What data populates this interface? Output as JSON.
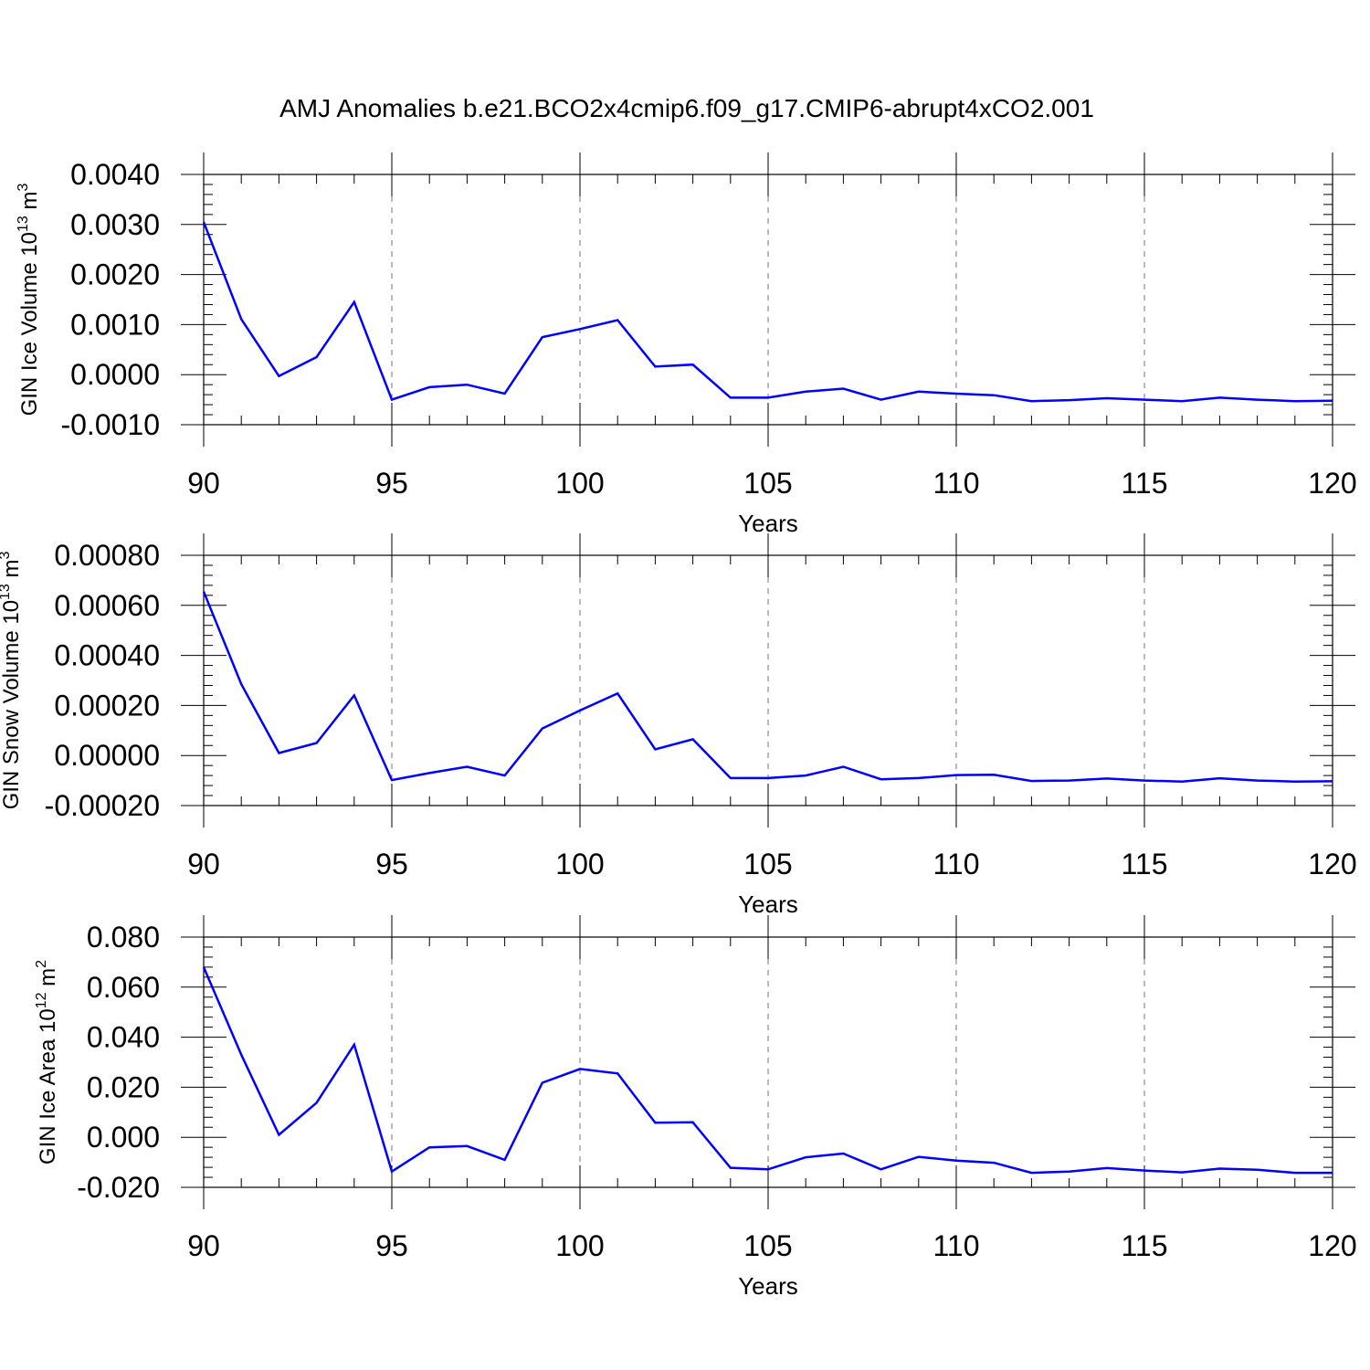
{
  "title": "AMJ Anomalies b.e21.BCO2x4cmip6.f09_g17.CMIP6-abrupt4xCO2.001",
  "line_color": "#0000ff",
  "chart_data": [
    {
      "type": "line",
      "title": "AMJ Anomalies b.e21.BCO2x4cmip6.f09_g17.CMIP6-abrupt4xCO2.001",
      "xlabel": "Years",
      "ylabel": "GIN Ice Volume 10",
      "ylabel_exp": "13",
      "ylabel_unit": " m",
      "ylabel_unit_exp": "3",
      "xlim": [
        90,
        120
      ],
      "ylim": [
        -0.001,
        0.004
      ],
      "xticks": [
        90,
        95,
        100,
        105,
        110,
        115,
        120
      ],
      "xtick_labels": [
        "90",
        "95",
        "100",
        "105",
        "110",
        "115",
        "120"
      ],
      "yticks": [
        -0.001,
        0.0,
        0.001,
        0.002,
        0.003,
        0.004
      ],
      "ytick_labels": [
        "-0.0010",
        "0.0000",
        "0.0010",
        "0.0020",
        "0.0030",
        "0.0040"
      ],
      "x": [
        90,
        91,
        92,
        93,
        94,
        95,
        96,
        97,
        98,
        99,
        100,
        101,
        102,
        103,
        104,
        105,
        106,
        107,
        108,
        109,
        110,
        111,
        112,
        113,
        114,
        115,
        116,
        117,
        118,
        119,
        120
      ],
      "values": [
        0.00305,
        0.00111,
        -3e-05,
        0.00035,
        0.00145,
        -0.0005,
        -0.00025,
        -0.0002,
        -0.00038,
        0.00075,
        0.00091,
        0.00109,
        0.00016,
        0.0002,
        -0.00046,
        -0.00046,
        -0.00034,
        -0.00028,
        -0.0005,
        -0.00034,
        -0.00038,
        -0.00041,
        -0.00053,
        -0.00051,
        -0.00047,
        -0.0005,
        -0.00053,
        -0.00046,
        -0.0005,
        -0.00053,
        -0.00052
      ]
    },
    {
      "type": "line",
      "xlabel": "Years",
      "ylabel": "GIN Snow Volume 10",
      "ylabel_exp": "13",
      "ylabel_unit": " m",
      "ylabel_unit_exp": "3",
      "xlim": [
        90,
        120
      ],
      "ylim": [
        -0.0002,
        0.0008
      ],
      "xticks": [
        90,
        95,
        100,
        105,
        110,
        115,
        120
      ],
      "xtick_labels": [
        "90",
        "95",
        "100",
        "105",
        "110",
        "115",
        "120"
      ],
      "yticks": [
        -0.0002,
        0.0,
        0.0002,
        0.0004,
        0.0006,
        0.0008
      ],
      "ytick_labels": [
        "-0.00020",
        "0.00000",
        "0.00020",
        "0.00040",
        "0.00060",
        "0.00080"
      ],
      "x": [
        90,
        91,
        92,
        93,
        94,
        95,
        96,
        97,
        98,
        99,
        100,
        101,
        102,
        103,
        104,
        105,
        106,
        107,
        108,
        109,
        110,
        111,
        112,
        113,
        114,
        115,
        116,
        117,
        118,
        119,
        120
      ],
      "values": [
        0.000655,
        0.000285,
        1e-05,
        5e-05,
        0.00024,
        -9.8e-05,
        -7e-05,
        -4.5e-05,
        -8e-05,
        0.000108,
        0.00018,
        0.000248,
        2.5e-05,
        6.5e-05,
        -9e-05,
        -9e-05,
        -8e-05,
        -4.5e-05,
        -9.5e-05,
        -9e-05,
        -7.8e-05,
        -7.7e-05,
        -0.000102,
        -0.0001,
        -9.2e-05,
        -0.0001,
        -0.000104,
        -9.1e-05,
        -0.0001,
        -0.000104,
        -0.000103
      ]
    },
    {
      "type": "line",
      "xlabel": "Years",
      "ylabel": "GIN Ice Area 10",
      "ylabel_exp": "12",
      "ylabel_unit": " m",
      "ylabel_unit_exp": "2",
      "xlim": [
        90,
        120
      ],
      "ylim": [
        -0.02,
        0.08
      ],
      "xticks": [
        90,
        95,
        100,
        105,
        110,
        115,
        120
      ],
      "xtick_labels": [
        "90",
        "95",
        "100",
        "105",
        "110",
        "115",
        "120"
      ],
      "yticks": [
        -0.02,
        0.0,
        0.02,
        0.04,
        0.06,
        0.08
      ],
      "ytick_labels": [
        "-0.020",
        "0.000",
        "0.020",
        "0.040",
        "0.060",
        "0.080"
      ],
      "x": [
        90,
        91,
        92,
        93,
        94,
        95,
        96,
        97,
        98,
        99,
        100,
        101,
        102,
        103,
        104,
        105,
        106,
        107,
        108,
        109,
        110,
        111,
        112,
        113,
        114,
        115,
        116,
        117,
        118,
        119,
        120
      ],
      "values": [
        0.068,
        0.033,
        0.001,
        0.0138,
        0.037,
        -0.0137,
        -0.004,
        -0.0035,
        -0.009,
        0.0218,
        0.0273,
        0.0255,
        0.0058,
        0.006,
        -0.0122,
        -0.0128,
        -0.008,
        -0.0065,
        -0.0128,
        -0.0078,
        -0.0093,
        -0.0102,
        -0.0142,
        -0.0137,
        -0.0123,
        -0.0133,
        -0.014,
        -0.0125,
        -0.013,
        -0.0142,
        -0.0142
      ]
    }
  ]
}
